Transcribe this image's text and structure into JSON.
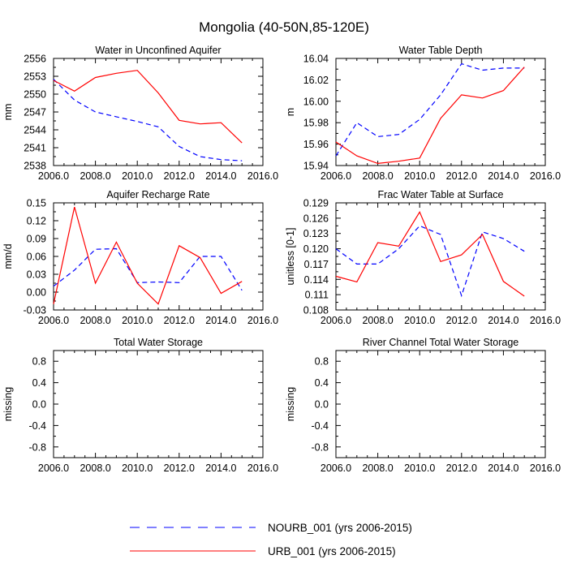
{
  "figure_title": "Mongolia (40-50N,85-120E)",
  "legend": [
    {
      "label": "NOURB_001 (yrs 2006-2015)",
      "color": "#0000ff",
      "style": "dashed"
    },
    {
      "label": "URB_001 (yrs 2006-2015)",
      "color": "#ff0000",
      "style": "solid"
    }
  ],
  "chart_data": [
    {
      "type": "line",
      "title": "Water in Unconfined Aquifer",
      "ylabel": "mm",
      "xlim": [
        2006,
        2016
      ],
      "ylim": [
        2538,
        2556
      ],
      "xticks": [
        2006,
        2008,
        2010,
        2012,
        2014,
        2016
      ],
      "xtick_labels": [
        "2006.0",
        "2008.0",
        "2010.0",
        "2012.0",
        "2014.0",
        "2016.0"
      ],
      "yticks": [
        2538,
        2541,
        2544,
        2547,
        2550,
        2553,
        2556
      ],
      "ytick_labels": [
        "2538",
        "2541",
        "2544",
        "2547",
        "2550",
        "2553",
        "2556"
      ],
      "x": [
        2006,
        2007,
        2008,
        2009,
        2010,
        2011,
        2012,
        2013,
        2014,
        2015
      ],
      "series": [
        {
          "name": "NOURB_001 (yrs 2006-2015)",
          "values": [
            2552.5,
            2549.0,
            2547.0,
            2546.2,
            2545.4,
            2544.5,
            2541.2,
            2539.5,
            2539.0,
            2538.8
          ]
        },
        {
          "name": "URB_001 (yrs 2006-2015)",
          "values": [
            2552.3,
            2550.5,
            2552.8,
            2553.5,
            2554.0,
            2550.2,
            2545.6,
            2545.0,
            2545.2,
            2541.8
          ]
        }
      ]
    },
    {
      "type": "line",
      "title": "Water Table Depth",
      "ylabel": "m",
      "xlim": [
        2006,
        2016
      ],
      "ylim": [
        15.94,
        16.04
      ],
      "xticks": [
        2006,
        2008,
        2010,
        2012,
        2014,
        2016
      ],
      "xtick_labels": [
        "2006.0",
        "2008.0",
        "2010.0",
        "2012.0",
        "2014.0",
        "2016.0"
      ],
      "yticks": [
        15.94,
        15.96,
        15.98,
        16.0,
        16.02,
        16.04
      ],
      "ytick_labels": [
        "15.94",
        "15.96",
        "15.98",
        "16.00",
        "16.02",
        "16.04"
      ],
      "x": [
        2006,
        2007,
        2008,
        2009,
        2010,
        2011,
        2012,
        2013,
        2014,
        2015
      ],
      "series": [
        {
          "name": "NOURB_001 (yrs 2006-2015)",
          "values": [
            15.949,
            15.98,
            15.967,
            15.969,
            15.983,
            16.006,
            16.035,
            16.029,
            16.031,
            16.031
          ]
        },
        {
          "name": "URB_001 (yrs 2006-2015)",
          "values": [
            15.962,
            15.949,
            15.942,
            15.944,
            15.947,
            15.984,
            16.006,
            16.003,
            16.01,
            16.032
          ]
        }
      ]
    },
    {
      "type": "line",
      "title": "Aquifer Recharge Rate",
      "ylabel": "mm/d",
      "xlim": [
        2006,
        2016
      ],
      "ylim": [
        -0.03,
        0.15
      ],
      "xticks": [
        2006,
        2008,
        2010,
        2012,
        2014,
        2016
      ],
      "xtick_labels": [
        "2006.0",
        "2008.0",
        "2010.0",
        "2012.0",
        "2014.0",
        "2016.0"
      ],
      "yticks": [
        -0.03,
        0.0,
        0.03,
        0.06,
        0.09,
        0.12,
        0.15
      ],
      "ytick_labels": [
        "-0.03",
        "0.00",
        "0.03",
        "0.06",
        "0.09",
        "0.12",
        "0.15"
      ],
      "x": [
        2006,
        2007,
        2008,
        2009,
        2010,
        2011,
        2012,
        2013,
        2014,
        2015
      ],
      "series": [
        {
          "name": "NOURB_001 (yrs 2006-2015)",
          "values": [
            0.01,
            0.037,
            0.072,
            0.073,
            0.016,
            0.017,
            0.016,
            0.06,
            0.06,
            0.003
          ]
        },
        {
          "name": "URB_001 (yrs 2006-2015)",
          "values": [
            -0.02,
            0.143,
            0.015,
            0.084,
            0.015,
            -0.02,
            0.078,
            0.058,
            -0.002,
            0.018
          ]
        }
      ]
    },
    {
      "type": "line",
      "title": "Frac Water Table at Surface",
      "ylabel": "unitless [0-1]",
      "xlim": [
        2006,
        2016
      ],
      "ylim": [
        0.108,
        0.129
      ],
      "xticks": [
        2006,
        2008,
        2010,
        2012,
        2014,
        2016
      ],
      "xtick_labels": [
        "2006.0",
        "2008.0",
        "2010.0",
        "2012.0",
        "2014.0",
        "2016.0"
      ],
      "yticks": [
        0.108,
        0.111,
        0.114,
        0.117,
        0.12,
        0.123,
        0.126,
        0.129
      ],
      "ytick_labels": [
        "0.108",
        "0.111",
        "0.114",
        "0.117",
        "0.120",
        "0.123",
        "0.126",
        "0.129"
      ],
      "x": [
        2006,
        2007,
        2008,
        2009,
        2010,
        2011,
        2012,
        2013,
        2014,
        2015
      ],
      "series": [
        {
          "name": "NOURB_001 (yrs 2006-2015)",
          "values": [
            0.12,
            0.117,
            0.117,
            0.12,
            0.1245,
            0.1228,
            0.1108,
            0.1233,
            0.122,
            0.1195
          ]
        },
        {
          "name": "URB_001 (yrs 2006-2015)",
          "values": [
            0.1146,
            0.1135,
            0.1212,
            0.1205,
            0.1272,
            0.1175,
            0.1188,
            0.1228,
            0.1136,
            0.1107
          ]
        }
      ]
    },
    {
      "type": "line",
      "title": "Total Water Storage",
      "ylabel": "missing",
      "xlim": [
        2006,
        2016
      ],
      "ylim": [
        -1.0,
        1.0
      ],
      "xticks": [
        2006,
        2008,
        2010,
        2012,
        2014,
        2016
      ],
      "xtick_labels": [
        "2006.0",
        "2008.0",
        "2010.0",
        "2012.0",
        "2014.0",
        "2016.0"
      ],
      "yticks": [
        -0.8,
        -0.4,
        0.0,
        0.4,
        0.8
      ],
      "ytick_labels": [
        "-0.8",
        "-0.4",
        "0.0",
        "0.4",
        "0.8"
      ],
      "x": [],
      "series": []
    },
    {
      "type": "line",
      "title": "River Channel Total Water Storage",
      "ylabel": "missing",
      "xlim": [
        2006,
        2016
      ],
      "ylim": [
        -1.0,
        1.0
      ],
      "xticks": [
        2006,
        2008,
        2010,
        2012,
        2014,
        2016
      ],
      "xtick_labels": [
        "2006.0",
        "2008.0",
        "2010.0",
        "2012.0",
        "2014.0",
        "2016.0"
      ],
      "yticks": [
        -0.8,
        -0.4,
        0.0,
        0.4,
        0.8
      ],
      "ytick_labels": [
        "-0.8",
        "-0.4",
        "0.0",
        "0.4",
        "0.8"
      ],
      "x": [],
      "series": []
    }
  ]
}
